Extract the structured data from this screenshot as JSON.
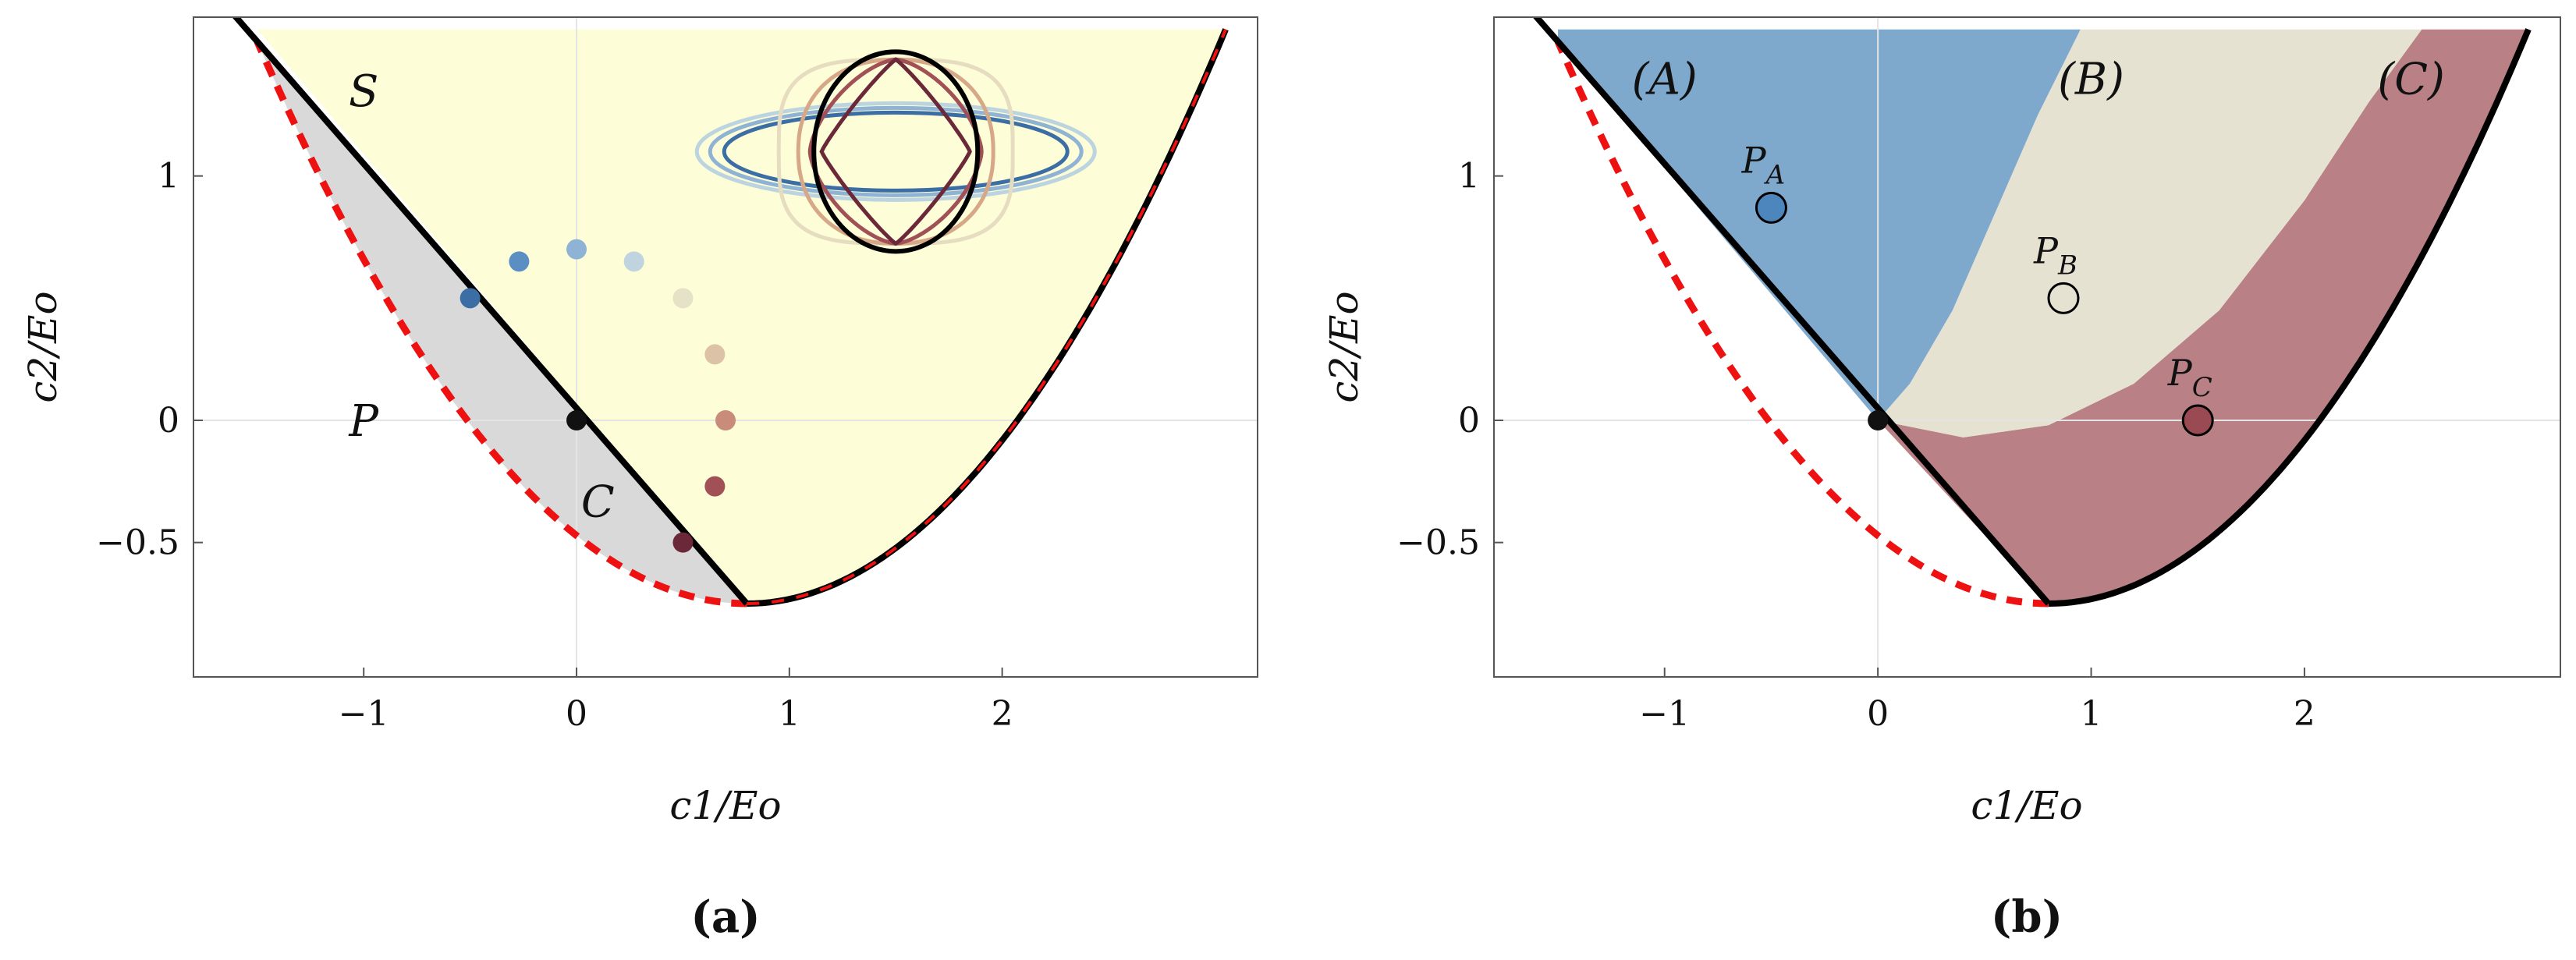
{
  "chart_data": [
    {
      "type": "area",
      "panel_label": "(a)",
      "xlabel": "c1/Eo",
      "ylabel": "c2/Eo",
      "xlim": [
        -1.8,
        3.2
      ],
      "ylim": [
        -1.05,
        1.65
      ],
      "x_ticks": [
        -1,
        0,
        1,
        2
      ],
      "x_tick_labels": [
        "−1",
        "0",
        "1",
        "2"
      ],
      "y_ticks": [
        -0.5,
        0,
        1
      ],
      "y_tick_labels": [
        "−0.5",
        "0",
        "1"
      ],
      "grid": "light lines at x=0 and y=0",
      "region_labels": [
        {
          "text": "S",
          "x": -1.0,
          "y": 1.35
        },
        {
          "text": "P",
          "x": -1.0,
          "y": 0.0
        },
        {
          "text": "C",
          "x": 0.1,
          "y": -0.33
        }
      ],
      "regions": [
        {
          "name": "S",
          "color": "#fdfdd8",
          "description": "above solid boundary"
        },
        {
          "name": "C",
          "color": "#d9d9d9",
          "description": "between solid line and dashed parabola"
        }
      ],
      "boundaries": {
        "solid_line": {
          "color": "#000000",
          "from": [
            -1.55,
            1.6
          ],
          "to": [
            0.8,
            -0.75
          ]
        },
        "dashed_parabola": {
          "color": "#ee1111",
          "vertex": [
            0.8,
            -0.75
          ],
          "points": [
            [
              -1.5,
              1.55
            ],
            [
              0.8,
              -0.75
            ],
            [
              3.05,
              1.6
            ]
          ]
        },
        "solid_parabola_right": {
          "color": "#000000",
          "from": [
            0.8,
            -0.75
          ],
          "to": [
            3.05,
            1.6
          ]
        }
      },
      "points": [
        {
          "x": -0.5,
          "y": 0.5,
          "color": "#3a6ea5"
        },
        {
          "x": -0.27,
          "y": 0.65,
          "color": "#5b8fc4"
        },
        {
          "x": 0.0,
          "y": 0.7,
          "color": "#8fb3d4"
        },
        {
          "x": 0.27,
          "y": 0.65,
          "color": "#c0d4df"
        },
        {
          "x": 0.5,
          "y": 0.5,
          "color": "#e6e2c8"
        },
        {
          "x": 0.65,
          "y": 0.27,
          "color": "#dcc3a8"
        },
        {
          "x": 0.7,
          "y": 0.0,
          "color": "#c98b7a"
        },
        {
          "x": 0.65,
          "y": -0.27,
          "color": "#a15055"
        },
        {
          "x": 0.5,
          "y": -0.5,
          "color": "#6b2838"
        },
        {
          "x": 0.0,
          "y": 0.0,
          "color": "#111111"
        }
      ],
      "inset": {
        "description": "nested closed curves",
        "center": [
          1.5,
          1.1
        ],
        "colors": [
          "#bcd4e0",
          "#8fb3d4",
          "#3a6ea5",
          "#e6dcc0",
          "#d6a888",
          "#a15055",
          "#6b2838",
          "#000000"
        ]
      }
    },
    {
      "type": "area",
      "panel_label": "(b)",
      "xlabel": "c1/Eo",
      "ylabel": "c2/Eo",
      "xlim": [
        -1.8,
        3.2
      ],
      "ylim": [
        -1.05,
        1.65
      ],
      "x_ticks": [
        -1,
        0,
        1,
        2
      ],
      "x_tick_labels": [
        "−1",
        "0",
        "1",
        "2"
      ],
      "y_ticks": [
        -0.5,
        0,
        1
      ],
      "y_tick_labels": [
        "−0.5",
        "0",
        "1"
      ],
      "grid": "light lines at x=0 and y=0",
      "region_labels": [
        {
          "text": "(A)",
          "x": -1.0,
          "y": 1.4
        },
        {
          "text": "(B)",
          "x": 1.0,
          "y": 1.4
        },
        {
          "text": "(C)",
          "x": 2.5,
          "y": 1.4
        }
      ],
      "regions": [
        {
          "name": "A",
          "color": "#7ea9cd"
        },
        {
          "name": "B",
          "color": "#e5e2d2"
        },
        {
          "name": "C",
          "color": "#b98085"
        }
      ],
      "points": [
        {
          "label_main": "P",
          "label_sub": "A",
          "x": -0.5,
          "y": 0.87,
          "color": "#4d86bd"
        },
        {
          "label_main": "P",
          "label_sub": "B",
          "x": 0.87,
          "y": 0.5,
          "color": "#e5e2d2"
        },
        {
          "label_main": "P",
          "label_sub": "C",
          "x": 1.5,
          "y": 0.0,
          "color": "#9a4a52"
        },
        {
          "x": 0.0,
          "y": 0.0,
          "color": "#111111"
        }
      ]
    }
  ]
}
